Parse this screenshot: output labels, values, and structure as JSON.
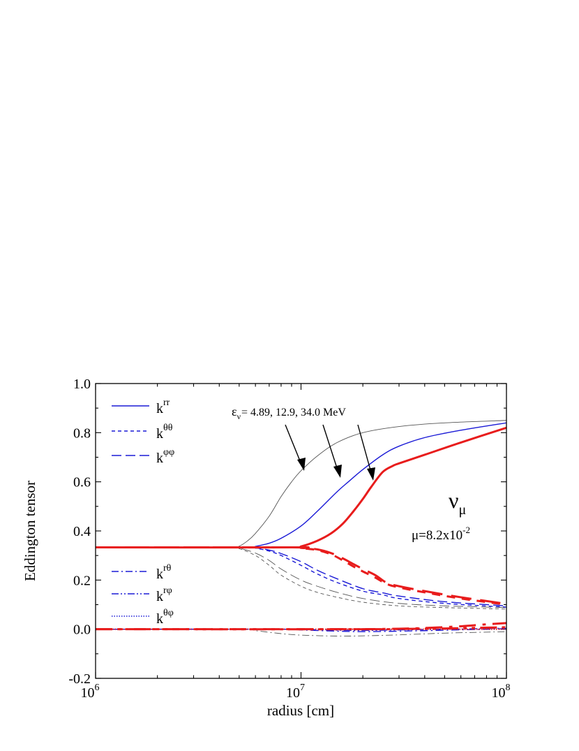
{
  "chart_data": {
    "type": "line",
    "xlabel": "radius [cm]",
    "ylabel": "Eddington tensor",
    "xscale": "log",
    "xlim": [
      1000000,
      100000000
    ],
    "ylim": [
      -0.2,
      1.0
    ],
    "x_ticks": [
      {
        "value": 1000000,
        "base": "10",
        "exp": "6"
      },
      {
        "value": 10000000,
        "base": "10",
        "exp": "7"
      },
      {
        "value": 100000000,
        "base": "10",
        "exp": "8"
      }
    ],
    "y_ticks": [
      -0.2,
      0.0,
      0.2,
      0.4,
      0.6,
      0.8,
      1.0
    ],
    "y_tick_labels": [
      "-0.2",
      "0.0",
      "0.2",
      "0.4",
      "0.6",
      "0.8",
      "1.0"
    ],
    "energies": [
      "4.89",
      "12.9",
      "34.0"
    ],
    "colors": {
      "e1": "#555555",
      "e2": "#1a1ad6",
      "e3": "#e81c1c",
      "axis": "#000000"
    },
    "legend_top": [
      {
        "base": "k",
        "sup": "rr",
        "style": "solid"
      },
      {
        "base": "k",
        "sup": "θθ",
        "style": "short-dash"
      },
      {
        "base": "k",
        "sup": "φφ",
        "style": "long-dash"
      }
    ],
    "legend_bottom": [
      {
        "base": "k",
        "sup": "rθ",
        "style": "dash-dot"
      },
      {
        "base": "k",
        "sup": "rφ",
        "style": "dash-dot-dot"
      },
      {
        "base": "k",
        "sup": "θφ",
        "style": "dotted"
      }
    ],
    "annotations": {
      "energy_label_prefix": "ε",
      "energy_label_sub": "ν",
      "energy_label_text": "= 4.89, 12.9, 34.0 MeV",
      "species_base": "ν",
      "species_sub": "μ",
      "mu_text": "μ=8.2x10",
      "mu_exp": "-2"
    },
    "series": [
      {
        "energy": "4.89",
        "component": "rr",
        "style": "solid",
        "width": 0.9,
        "color_key": "e1",
        "x": [
          1000000,
          4500000,
          5000000,
          5500000,
          6000000,
          7000000,
          8000000,
          9000000,
          10000000,
          12000000,
          15000000,
          20000000,
          30000000,
          50000000,
          100000000
        ],
        "y": [
          0.333,
          0.333,
          0.338,
          0.36,
          0.39,
          0.46,
          0.54,
          0.6,
          0.645,
          0.705,
          0.76,
          0.8,
          0.825,
          0.84,
          0.85
        ]
      },
      {
        "energy": "12.9",
        "component": "rr",
        "style": "solid",
        "width": 1.4,
        "color_key": "e2",
        "x": [
          1000000,
          5500000,
          6000000,
          7000000,
          8000000,
          10000000,
          12000000,
          15000000,
          17000000,
          20000000,
          25000000,
          30000000,
          40000000,
          60000000,
          100000000
        ],
        "y": [
          0.333,
          0.333,
          0.337,
          0.35,
          0.37,
          0.42,
          0.48,
          0.56,
          0.6,
          0.65,
          0.71,
          0.745,
          0.78,
          0.81,
          0.84
        ]
      },
      {
        "energy": "34.0",
        "component": "rr",
        "style": "solid",
        "width": 3.0,
        "color_key": "e3",
        "x": [
          1000000,
          9000000,
          10000000,
          12000000,
          14000000,
          16000000,
          18000000,
          20000000,
          22000000,
          25000000,
          28000000,
          30000000,
          40000000,
          60000000,
          100000000
        ],
        "y": [
          0.333,
          0.333,
          0.337,
          0.36,
          0.39,
          0.43,
          0.48,
          0.53,
          0.58,
          0.64,
          0.665,
          0.675,
          0.71,
          0.76,
          0.82
        ]
      },
      {
        "energy": "4.89",
        "component": "θθ",
        "style": "short-dash",
        "width": 0.9,
        "color_key": "e1",
        "x": [
          1000000,
          4500000,
          5000000,
          6000000,
          7000000,
          8000000,
          10000000,
          12000000,
          15000000,
          20000000,
          30000000,
          50000000,
          100000000
        ],
        "y": [
          0.333,
          0.333,
          0.328,
          0.3,
          0.26,
          0.22,
          0.175,
          0.15,
          0.13,
          0.11,
          0.095,
          0.088,
          0.082
        ]
      },
      {
        "energy": "4.89",
        "component": "φφ",
        "style": "long-dash",
        "width": 0.9,
        "color_key": "e1",
        "x": [
          1000000,
          4500000,
          5000000,
          6000000,
          7000000,
          8000000,
          10000000,
          12000000,
          15000000,
          20000000,
          30000000,
          50000000,
          100000000
        ],
        "y": [
          0.333,
          0.333,
          0.33,
          0.31,
          0.28,
          0.245,
          0.2,
          0.175,
          0.15,
          0.125,
          0.105,
          0.095,
          0.088
        ]
      },
      {
        "energy": "12.9",
        "component": "θθ",
        "style": "short-dash",
        "width": 1.4,
        "color_key": "e2",
        "x": [
          1000000,
          5500000,
          6000000,
          7000000,
          8000000,
          10000000,
          12000000,
          15000000,
          20000000,
          25000000,
          30000000,
          50000000,
          100000000
        ],
        "y": [
          0.333,
          0.333,
          0.33,
          0.318,
          0.3,
          0.26,
          0.225,
          0.19,
          0.155,
          0.14,
          0.125,
          0.105,
          0.09
        ]
      },
      {
        "energy": "12.9",
        "component": "φφ",
        "style": "long-dash",
        "width": 1.4,
        "color_key": "e2",
        "x": [
          1000000,
          5500000,
          6000000,
          7000000,
          8000000,
          10000000,
          12000000,
          15000000,
          20000000,
          25000000,
          30000000,
          50000000,
          100000000
        ],
        "y": [
          0.333,
          0.333,
          0.331,
          0.322,
          0.308,
          0.275,
          0.24,
          0.205,
          0.165,
          0.148,
          0.135,
          0.112,
          0.095
        ]
      },
      {
        "energy": "34.0",
        "component": "θθ",
        "style": "short-dash",
        "width": 3.0,
        "color_key": "e3",
        "x": [
          1000000,
          9000000,
          10000000,
          12000000,
          14000000,
          16000000,
          18000000,
          20000000,
          23000000,
          26000000,
          30000000,
          40000000,
          60000000,
          100000000
        ],
        "y": [
          0.333,
          0.333,
          0.33,
          0.322,
          0.305,
          0.28,
          0.255,
          0.235,
          0.21,
          0.185,
          0.17,
          0.15,
          0.125,
          0.1
        ]
      },
      {
        "energy": "34.0",
        "component": "φφ",
        "style": "long-dash",
        "width": 3.0,
        "color_key": "e3",
        "x": [
          1000000,
          9000000,
          10000000,
          12000000,
          14000000,
          16000000,
          18000000,
          20000000,
          23000000,
          26000000,
          30000000,
          40000000,
          60000000,
          100000000
        ],
        "y": [
          0.333,
          0.333,
          0.331,
          0.325,
          0.31,
          0.288,
          0.265,
          0.245,
          0.22,
          0.19,
          0.175,
          0.155,
          0.13,
          0.103
        ]
      },
      {
        "energy": "4.89",
        "component": "rθ",
        "style": "dash-dot",
        "width": 0.9,
        "color_key": "e1",
        "x": [
          1000000,
          5000000,
          6000000,
          8000000,
          10000000,
          15000000,
          20000000,
          30000000,
          50000000,
          100000000
        ],
        "y": [
          0.0,
          0.0,
          -0.006,
          -0.018,
          -0.024,
          -0.028,
          -0.027,
          -0.023,
          -0.016,
          -0.01
        ]
      },
      {
        "energy": "12.9",
        "component": "rθ",
        "style": "dash-dot",
        "width": 1.4,
        "color_key": "e2",
        "x": [
          1000000,
          8000000,
          10000000,
          15000000,
          20000000,
          30000000,
          50000000,
          100000000
        ],
        "y": [
          0.0,
          0.0,
          -0.003,
          -0.008,
          -0.01,
          -0.008,
          -0.004,
          0.002
        ]
      },
      {
        "energy": "12.9",
        "component": "rφ",
        "style": "dash-dot-dot",
        "width": 1.4,
        "color_key": "e2",
        "x": [
          1000000,
          8000000,
          10000000,
          15000000,
          20000000,
          30000000,
          50000000,
          100000000
        ],
        "y": [
          0.0,
          0.0,
          -0.001,
          -0.004,
          -0.005,
          -0.003,
          0.0,
          0.004
        ]
      },
      {
        "energy": "34.0",
        "component": "rθ",
        "style": "dash-dot",
        "width": 3.0,
        "color_key": "e3",
        "x": [
          1000000,
          15000000,
          20000000,
          30000000,
          40000000,
          60000000,
          80000000,
          100000000
        ],
        "y": [
          0.0,
          0.0,
          0.0,
          0.002,
          0.005,
          0.012,
          0.02,
          0.025
        ]
      },
      {
        "energy": "34.0",
        "component": "rφ",
        "style": "dash-dot-dot",
        "width": 3.0,
        "color_key": "e3",
        "x": [
          1000000,
          20000000,
          30000000,
          50000000,
          100000000
        ],
        "y": [
          0.0,
          0.0,
          0.001,
          0.003,
          0.008
        ]
      },
      {
        "energy": "34.0",
        "component": "θφ",
        "style": "dotted",
        "width": 2.2,
        "color_key": "e3",
        "x": [
          1000000,
          100000000
        ],
        "y": [
          0.0,
          0.0
        ]
      }
    ]
  }
}
